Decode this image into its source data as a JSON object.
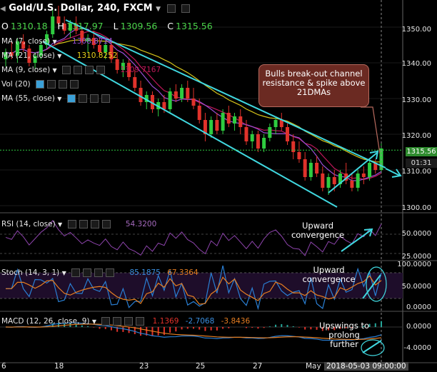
{
  "header": {
    "title": "Gold/U.S. Dollar, 240, FXCM",
    "ohlc": {
      "O": "1310.18",
      "H": "1317.97",
      "L": "1309.56",
      "C": "1315.56"
    }
  },
  "indicators": {
    "ma7": {
      "label": "MA (7, close)",
      "value": "1308.8714"
    },
    "ma21": {
      "label": "MA (21, close)",
      "value": "1310.8252"
    },
    "ma9": {
      "label": "MA (9, close)",
      "value": "1309.7167"
    },
    "vol": {
      "label": "Vol (20)"
    },
    "ma55": {
      "label": "MA (55, close)"
    },
    "rsi": {
      "label": "RSI (14, close)",
      "value": "54.3200"
    },
    "stoch": {
      "label": "Stoch (14, 3, 1)",
      "k": "85.1875",
      "d": "67.3364"
    },
    "macd": {
      "label": "MACD (12, 26, close, 9)",
      "hist": "1.1369",
      "macd": "-2.7068",
      "signal": "-3.8436"
    }
  },
  "price_axis": {
    "ticks": [
      "1350.00",
      "1340.00",
      "1330.00",
      "1320.00",
      "1310.00",
      "1300.00"
    ],
    "current": "1315.56",
    "countdown": "01:31"
  },
  "rsi_axis": {
    "ticks": [
      "50.0000",
      "25.0000"
    ]
  },
  "stoch_axis": {
    "ticks": [
      "100.0000",
      "50.0000",
      "0.0000"
    ]
  },
  "macd_axis": {
    "ticks": [
      "0.0000",
      "-4.0000"
    ]
  },
  "time_axis": {
    "ticks": [
      "6",
      "18",
      "23",
      "25",
      "27",
      "May"
    ],
    "cursor": "2018-05-03 09:00:00"
  },
  "annotations": {
    "callout": "Bulls break-out channel resistance & spike above 21DMAs",
    "rsi_note": "Upward convergence",
    "stoch_note": "Upward convergence",
    "macd_note": "Upswings to prolong further"
  },
  "colors": {
    "up": "#2ecc40",
    "down": "#e0322b",
    "ma7": "#9a4fd6",
    "ma21": "#d4c21a",
    "ma9": "#c2185b",
    "channel": "#40d8e0",
    "rsi": "#8e44ad",
    "stoch_k": "#2a7fd4",
    "stoch_d": "#e67e22",
    "macd": "#2a7fd4",
    "signal": "#e67e22"
  },
  "chart_data": {
    "type": "candlestick",
    "ylim": [
      1298,
      1356
    ],
    "candles": [
      {
        "o": 1341,
        "h": 1344,
        "l": 1339,
        "c": 1343
      },
      {
        "o": 1343,
        "h": 1346,
        "l": 1341,
        "c": 1342
      },
      {
        "o": 1342,
        "h": 1347,
        "l": 1340,
        "c": 1346
      },
      {
        "o": 1346,
        "h": 1348,
        "l": 1343,
        "c": 1344
      },
      {
        "o": 1344,
        "h": 1345,
        "l": 1339,
        "c": 1340
      },
      {
        "o": 1340,
        "h": 1343,
        "l": 1338,
        "c": 1342
      },
      {
        "o": 1342,
        "h": 1346,
        "l": 1341,
        "c": 1345
      },
      {
        "o": 1345,
        "h": 1349,
        "l": 1344,
        "c": 1348
      },
      {
        "o": 1348,
        "h": 1355,
        "l": 1347,
        "c": 1353
      },
      {
        "o": 1353,
        "h": 1356,
        "l": 1350,
        "c": 1351
      },
      {
        "o": 1351,
        "h": 1353,
        "l": 1348,
        "c": 1349
      },
      {
        "o": 1349,
        "h": 1352,
        "l": 1347,
        "c": 1351
      },
      {
        "o": 1351,
        "h": 1353,
        "l": 1348,
        "c": 1349
      },
      {
        "o": 1349,
        "h": 1350,
        "l": 1345,
        "c": 1346
      },
      {
        "o": 1346,
        "h": 1348,
        "l": 1343,
        "c": 1347
      },
      {
        "o": 1347,
        "h": 1349,
        "l": 1344,
        "c": 1345
      },
      {
        "o": 1345,
        "h": 1347,
        "l": 1342,
        "c": 1343
      },
      {
        "o": 1343,
        "h": 1346,
        "l": 1341,
        "c": 1345
      },
      {
        "o": 1345,
        "h": 1346,
        "l": 1340,
        "c": 1341
      },
      {
        "o": 1341,
        "h": 1343,
        "l": 1337,
        "c": 1338
      },
      {
        "o": 1338,
        "h": 1341,
        "l": 1336,
        "c": 1340
      },
      {
        "o": 1340,
        "h": 1341,
        "l": 1335,
        "c": 1336
      },
      {
        "o": 1336,
        "h": 1338,
        "l": 1332,
        "c": 1333
      },
      {
        "o": 1333,
        "h": 1335,
        "l": 1328,
        "c": 1329
      },
      {
        "o": 1329,
        "h": 1332,
        "l": 1327,
        "c": 1331
      },
      {
        "o": 1331,
        "h": 1332,
        "l": 1326,
        "c": 1327
      },
      {
        "o": 1327,
        "h": 1330,
        "l": 1325,
        "c": 1329
      },
      {
        "o": 1329,
        "h": 1331,
        "l": 1326,
        "c": 1327
      },
      {
        "o": 1327,
        "h": 1333,
        "l": 1326,
        "c": 1332
      },
      {
        "o": 1332,
        "h": 1334,
        "l": 1329,
        "c": 1330
      },
      {
        "o": 1330,
        "h": 1334,
        "l": 1329,
        "c": 1333
      },
      {
        "o": 1333,
        "h": 1335,
        "l": 1329,
        "c": 1330
      },
      {
        "o": 1330,
        "h": 1333,
        "l": 1327,
        "c": 1328
      },
      {
        "o": 1328,
        "h": 1330,
        "l": 1323,
        "c": 1324
      },
      {
        "o": 1324,
        "h": 1326,
        "l": 1318,
        "c": 1320
      },
      {
        "o": 1320,
        "h": 1325,
        "l": 1319,
        "c": 1324
      },
      {
        "o": 1324,
        "h": 1326,
        "l": 1320,
        "c": 1321
      },
      {
        "o": 1321,
        "h": 1327,
        "l": 1320,
        "c": 1326
      },
      {
        "o": 1326,
        "h": 1328,
        "l": 1322,
        "c": 1323
      },
      {
        "o": 1323,
        "h": 1326,
        "l": 1321,
        "c": 1325
      },
      {
        "o": 1325,
        "h": 1327,
        "l": 1320,
        "c": 1322
      },
      {
        "o": 1322,
        "h": 1324,
        "l": 1317,
        "c": 1318
      },
      {
        "o": 1318,
        "h": 1321,
        "l": 1316,
        "c": 1320
      },
      {
        "o": 1320,
        "h": 1321,
        "l": 1315,
        "c": 1316
      },
      {
        "o": 1316,
        "h": 1320,
        "l": 1315,
        "c": 1319
      },
      {
        "o": 1319,
        "h": 1323,
        "l": 1318,
        "c": 1322
      },
      {
        "o": 1322,
        "h": 1325,
        "l": 1320,
        "c": 1324
      },
      {
        "o": 1324,
        "h": 1326,
        "l": 1321,
        "c": 1322
      },
      {
        "o": 1322,
        "h": 1323,
        "l": 1317,
        "c": 1318
      },
      {
        "o": 1318,
        "h": 1320,
        "l": 1313,
        "c": 1315
      },
      {
        "o": 1315,
        "h": 1318,
        "l": 1312,
        "c": 1313
      },
      {
        "o": 1313,
        "h": 1315,
        "l": 1307,
        "c": 1308
      },
      {
        "o": 1308,
        "h": 1313,
        "l": 1307,
        "c": 1312
      },
      {
        "o": 1312,
        "h": 1314,
        "l": 1308,
        "c": 1309
      },
      {
        "o": 1309,
        "h": 1311,
        "l": 1304,
        "c": 1305
      },
      {
        "o": 1305,
        "h": 1309,
        "l": 1303,
        "c": 1308
      },
      {
        "o": 1308,
        "h": 1310,
        "l": 1304,
        "c": 1306
      },
      {
        "o": 1306,
        "h": 1310,
        "l": 1305,
        "c": 1309
      },
      {
        "o": 1309,
        "h": 1312,
        "l": 1306,
        "c": 1307
      },
      {
        "o": 1307,
        "h": 1309,
        "l": 1304,
        "c": 1305
      },
      {
        "o": 1305,
        "h": 1310,
        "l": 1304,
        "c": 1309
      },
      {
        "o": 1309,
        "h": 1311,
        "l": 1306,
        "c": 1308
      },
      {
        "o": 1308,
        "h": 1313,
        "l": 1307,
        "c": 1312
      },
      {
        "o": 1312,
        "h": 1313,
        "l": 1309,
        "c": 1310
      },
      {
        "o": 1310,
        "h": 1318,
        "l": 1309,
        "c": 1316
      }
    ]
  }
}
